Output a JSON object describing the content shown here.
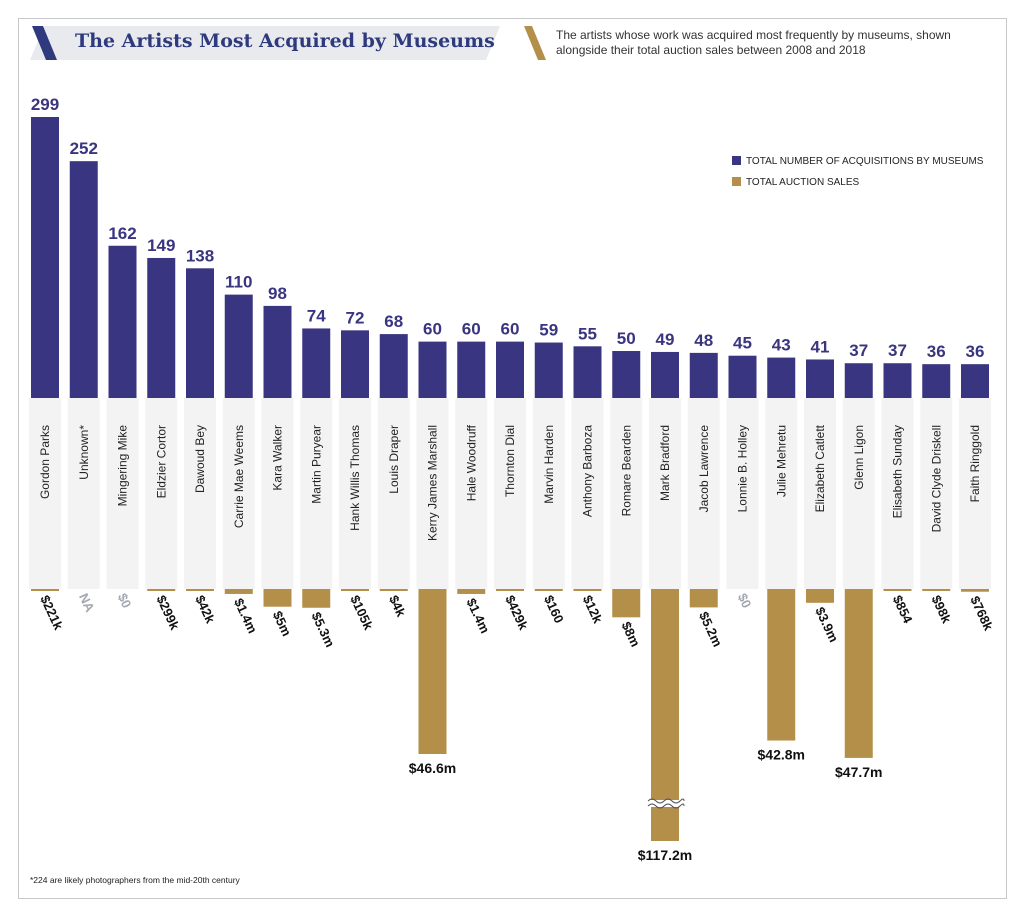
{
  "title": "The Artists Most Acquired by Museums",
  "subtitle": "The artists whose work was acquired most frequently by museums, shown alongside their total auction sales between 2008 and 2018",
  "footnote": "*224 are likely photographers from the mid-20th century",
  "colors": {
    "acquisitions": "#3a3580",
    "auction": "#b38f4a",
    "na_label": "#a3a8b2",
    "title": "#2f3a7e",
    "banner": "#e8eaee",
    "category_panel": "#f3f3f3"
  },
  "legend": [
    {
      "label": "TOTAL NUMBER OF ACQUISITIONS BY MUSEUMS",
      "color": "#3a3580"
    },
    {
      "label": "TOTAL AUCTION SALES",
      "color": "#b38f4a"
    }
  ],
  "chart_data": {
    "type": "bar",
    "title": "The Artists Most Acquired by Museums",
    "categories": [
      "Gordon Parks",
      "Unknown*",
      "Mingering Mike",
      "Eldzier Cortor",
      "Dawoud Bey",
      "Carrie Mae Weems",
      "Kara Walker",
      "Martin Puryear",
      "Hank Willis Thomas",
      "Louis Draper",
      "Kerry James Marshall",
      "Hale Woodruff",
      "Thornton Dial",
      "Marvin Harden",
      "Anthony Barboza",
      "Romare Bearden",
      "Mark Bradford",
      "Jacob Lawrence",
      "Lonnie B. Holley",
      "Julie Mehretu",
      "Elizabeth Catlett",
      "Glenn Ligon",
      "Elisabeth Sunday",
      "David Clyde Driskell",
      "Faith Ringgold"
    ],
    "series": [
      {
        "name": "TOTAL NUMBER OF ACQUISITIONS BY MUSEUMS",
        "values": [
          299,
          252,
          162,
          149,
          138,
          110,
          98,
          74,
          72,
          68,
          60,
          60,
          60,
          59,
          55,
          50,
          49,
          48,
          45,
          43,
          41,
          37,
          37,
          36,
          36
        ]
      },
      {
        "name": "TOTAL AUCTION SALES",
        "values": [
          221000,
          null,
          0,
          299000,
          42000,
          1400000,
          5000000,
          5300000,
          105000,
          4000,
          46600000,
          1400000,
          429000,
          160,
          12000,
          8000000,
          117200000,
          5200000,
          0,
          42800000,
          3900000,
          47700000,
          854,
          98000,
          768000
        ],
        "labels": [
          "$221k",
          "NA",
          "$0",
          "$299k",
          "$42k",
          "$1.4m",
          "$5m",
          "$5.3m",
          "$105k",
          "$4k",
          "$46.6m",
          "$1.4m",
          "$429k",
          "$160",
          "$12k",
          "$8m",
          "$117.2m",
          "$5.2m",
          "$0",
          "$42.8m",
          "$3.9m",
          "$47.7m",
          "$854",
          "$98k",
          "$768k"
        ],
        "broken_axis": "Mark Bradford"
      }
    ]
  }
}
